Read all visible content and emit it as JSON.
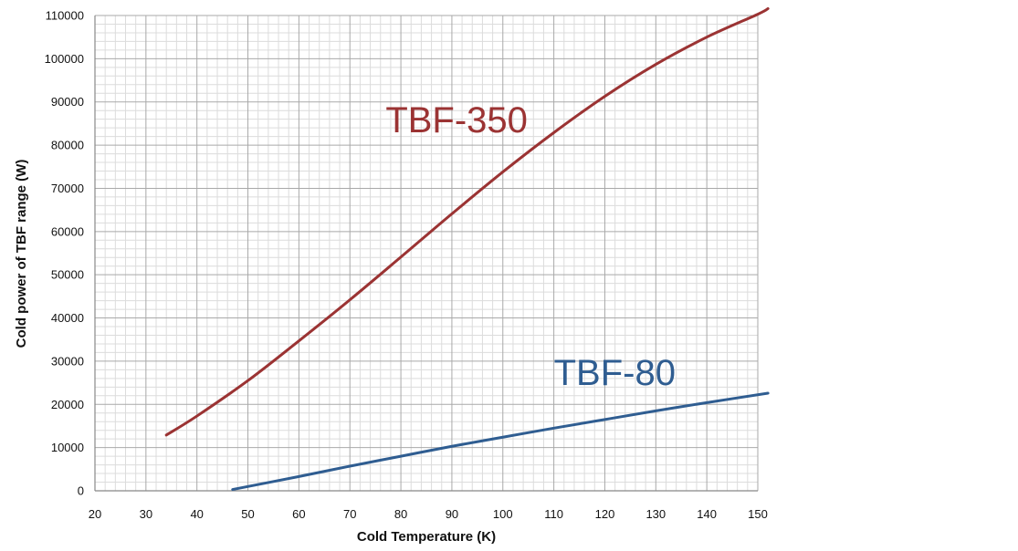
{
  "chart_data": {
    "type": "line",
    "title": "",
    "xlabel": "Cold Temperature (K)",
    "ylabel": "Cold power of TBF range (W)",
    "xlim": [
      20,
      152
    ],
    "ylim": [
      0,
      110000
    ],
    "x_ticks": [
      20,
      30,
      40,
      50,
      60,
      70,
      80,
      90,
      100,
      110,
      120,
      130,
      140,
      150
    ],
    "y_ticks": [
      0,
      10000,
      20000,
      30000,
      40000,
      50000,
      60000,
      70000,
      80000,
      90000,
      100000,
      110000
    ],
    "grid": true,
    "minor_grid": true,
    "legend": "none",
    "series": [
      {
        "name": "TBF-350",
        "color": "#9b3333",
        "points": [
          [
            34,
            12900
          ],
          [
            40,
            17300
          ],
          [
            50,
            25500
          ],
          [
            60,
            34700
          ],
          [
            70,
            44200
          ],
          [
            80,
            54100
          ],
          [
            90,
            64100
          ],
          [
            100,
            73800
          ],
          [
            110,
            82900
          ],
          [
            120,
            91300
          ],
          [
            130,
            98700
          ],
          [
            140,
            105000
          ],
          [
            150,
            110300
          ],
          [
            152,
            111600
          ]
        ]
      },
      {
        "name": "TBF-80",
        "color": "#2f5d91",
        "points": [
          [
            47,
            300
          ],
          [
            60,
            3300
          ],
          [
            70,
            5700
          ],
          [
            80,
            8000
          ],
          [
            90,
            10300
          ],
          [
            100,
            12400
          ],
          [
            110,
            14500
          ],
          [
            120,
            16500
          ],
          [
            130,
            18500
          ],
          [
            140,
            20400
          ],
          [
            152,
            22600
          ]
        ]
      }
    ],
    "annotations": [
      {
        "text": "TBF-350",
        "x": 77,
        "y": 83000,
        "color": "#9b3333"
      },
      {
        "text": "TBF-80",
        "x": 110,
        "y": 24500,
        "color": "#2f5d91"
      }
    ]
  }
}
